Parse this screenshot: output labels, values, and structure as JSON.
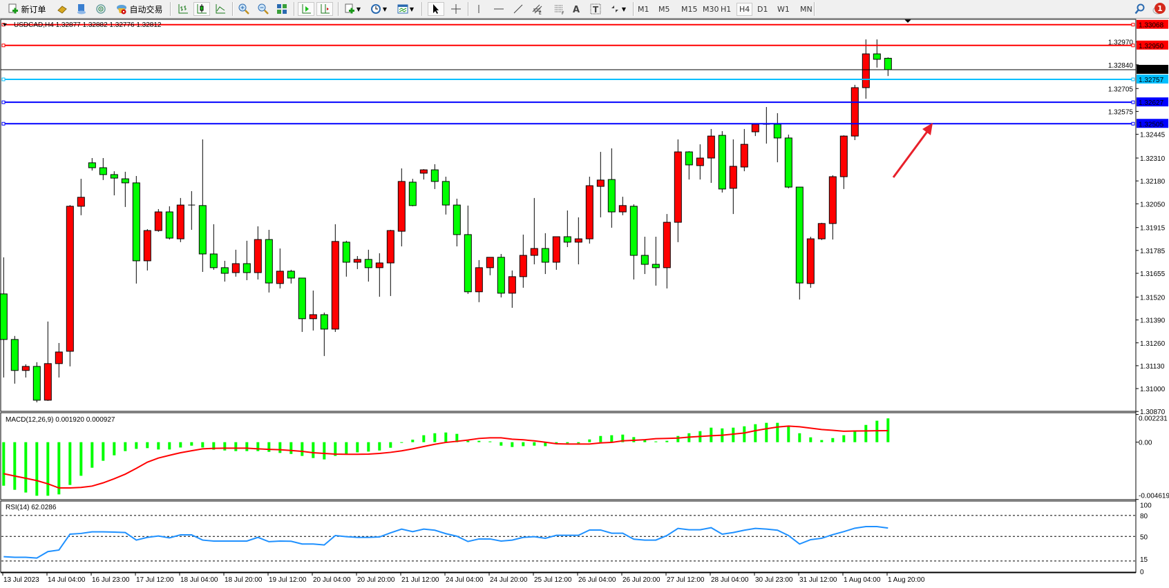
{
  "toolbar": {
    "new_order_label": "新订单",
    "auto_trading_label": "自动交易",
    "timeframes": [
      "M1",
      "M5",
      "M15",
      "M30",
      "H1",
      "H4",
      "D1",
      "W1",
      "MN"
    ],
    "active_timeframe": "H4",
    "notification_count": "1",
    "tool_icons": [
      "new-order-icon",
      "market-watch-icon",
      "navigator-icon",
      "signals-icon",
      "auto-trading-icon",
      "bar-chart-icon",
      "candlestick-icon",
      "line-chart-icon",
      "zoom-in-icon",
      "zoom-out-icon",
      "tile-windows-icon",
      "chart-shift-icon",
      "auto-scroll-icon",
      "indicators-icon",
      "periods-icon",
      "templates-icon",
      "cursor-icon",
      "crosshair-icon",
      "vertical-line-icon",
      "horizontal-line-icon",
      "trendline-icon",
      "equidistant-channel-icon",
      "fibonacci-icon",
      "text-icon",
      "text-label-icon",
      "arrows-icon",
      "search-icon",
      "notifications-icon"
    ]
  },
  "chart": {
    "symbol_info": "USDCAD,H4  1.32877 1.32882 1.32776 1.32812",
    "bull_color": "#ff0000",
    "bear_color": "#00ff00",
    "price_ticks": [
      "1.32970",
      "1.32840",
      "1.32705",
      "1.32575",
      "1.32445",
      "1.32310",
      "1.32180",
      "1.32050",
      "1.31915",
      "1.31785",
      "1.31655",
      "1.31520",
      "1.31390",
      "1.31260",
      "1.31130",
      "1.31000",
      "1.30870"
    ],
    "levels": [
      {
        "price": "1.33068",
        "color": "#ff0000"
      },
      {
        "price": "1.32950",
        "color": "#ff0000"
      },
      {
        "price": "1.32757",
        "color": "#00bfff"
      },
      {
        "price": "1.32627",
        "color": "#0000ff"
      },
      {
        "price": "1.32505",
        "color": "#0000ff"
      }
    ],
    "bid": {
      "price": "1.32812",
      "color": "#000000"
    },
    "time_labels": [
      "13 Jul 2023",
      "14 Jul 04:00",
      "16 Jul 23:00",
      "17 Jul 12:00",
      "18 Jul 04:00",
      "18 Jul 20:00",
      "19 Jul 12:00",
      "20 Jul 04:00",
      "20 Jul 20:00",
      "21 Jul 12:00",
      "24 Jul 04:00",
      "24 Jul 20:00",
      "25 Jul 12:00",
      "26 Jul 04:00",
      "26 Jul 20:00",
      "27 Jul 12:00",
      "28 Jul 04:00",
      "30 Jul 23:00",
      "31 Jul 12:00",
      "1 Aug 04:00",
      "1 Aug 20:00"
    ],
    "annotation_arrow_color": "#e8202a"
  },
  "macd": {
    "label": "MACD(12,26,9) 0.001920 0.000927",
    "axis_labels": [
      "0.002231",
      "0.00",
      "-0.004619"
    ]
  },
  "rsi": {
    "label": "RSI(14) 62.0286",
    "axis_labels": [
      "100",
      "80",
      "50",
      "15",
      "0"
    ],
    "line_color": "#1e90ff"
  },
  "chart_data": [
    {
      "type": "candlestick",
      "title": "USDCAD,H4",
      "ylim": [
        1.3087,
        1.331
      ],
      "ohlc": [
        [
          1.31538,
          1.31746,
          1.31063,
          1.31279
        ],
        [
          1.31279,
          1.31299,
          1.31028,
          1.31103
        ],
        [
          1.31103,
          1.31138,
          1.31063,
          1.31126
        ],
        [
          1.31126,
          1.3115,
          1.30922,
          1.30934
        ],
        [
          1.30934,
          1.31381,
          1.3093,
          1.31142
        ],
        [
          1.31142,
          1.31259,
          1.31063,
          1.31208
        ],
        [
          1.31212,
          1.32043,
          1.31126,
          1.32036
        ],
        [
          1.32036,
          1.32192,
          1.31985,
          1.32087
        ],
        [
          1.32283,
          1.3231,
          1.32239,
          1.32255
        ],
        [
          1.32255,
          1.3231,
          1.32185,
          1.32216
        ],
        [
          1.32216,
          1.32235,
          1.32098,
          1.32196
        ],
        [
          1.32192,
          1.32232,
          1.32032,
          1.32169
        ],
        [
          1.32169,
          1.32208,
          1.31597,
          1.31726
        ],
        [
          1.31726,
          1.31906,
          1.31671,
          1.31898
        ],
        [
          1.31898,
          1.3202,
          1.31891,
          1.32004
        ],
        [
          1.32004,
          1.32036,
          1.31847,
          1.31855
        ],
        [
          1.31851,
          1.32083,
          1.31832,
          1.32043
        ],
        [
          1.32043,
          1.32122,
          1.31902,
          1.32043
        ],
        [
          1.3204,
          1.32416,
          1.31663,
          1.31765
        ],
        [
          1.31765,
          1.31934,
          1.31675,
          1.31687
        ],
        [
          1.31687,
          1.31726,
          1.31608,
          1.31655
        ],
        [
          1.31659,
          1.31789,
          1.31636,
          1.3171
        ],
        [
          1.3171,
          1.3184,
          1.31616,
          1.31659
        ],
        [
          1.31659,
          1.31922,
          1.3162,
          1.31847
        ],
        [
          1.31847,
          1.31902,
          1.31546,
          1.316
        ],
        [
          1.31597,
          1.31796,
          1.31569,
          1.31667
        ],
        [
          1.31667,
          1.31675,
          1.31597,
          1.31628
        ],
        [
          1.31628,
          1.31628,
          1.31322,
          1.31397
        ],
        [
          1.31397,
          1.31557,
          1.3133,
          1.3142
        ],
        [
          1.3142,
          1.31432,
          1.31185,
          1.31338
        ],
        [
          1.31338,
          1.31934,
          1.31322,
          1.31836
        ],
        [
          1.31832,
          1.3184,
          1.31636,
          1.31718
        ],
        [
          1.31718,
          1.31753,
          1.31679,
          1.31734
        ],
        [
          1.31734,
          1.31789,
          1.31608,
          1.31687
        ],
        [
          1.31687,
          1.31769,
          1.31522,
          1.31714
        ],
        [
          1.31714,
          1.31902,
          1.31526,
          1.31898
        ],
        [
          1.31894,
          1.32251,
          1.31808,
          1.32177
        ],
        [
          1.32173,
          1.32192,
          1.32036,
          1.3204
        ],
        [
          1.32224,
          1.32247,
          1.32188,
          1.32243
        ],
        [
          1.32243,
          1.32275,
          1.32134,
          1.32177
        ],
        [
          1.32177,
          1.32204,
          1.31989,
          1.32043
        ],
        [
          1.32043,
          1.32079,
          1.31808,
          1.31875
        ],
        [
          1.31875,
          1.3204,
          1.31538,
          1.3155
        ],
        [
          1.3155,
          1.3173,
          1.31491,
          1.31687
        ],
        [
          1.31687,
          1.31746,
          1.31644,
          1.31746
        ],
        [
          1.31746,
          1.31765,
          1.31518,
          1.31542
        ],
        [
          1.31542,
          1.31671,
          1.31459,
          1.31636
        ],
        [
          1.31636,
          1.31875,
          1.31573,
          1.31757
        ],
        [
          1.31757,
          1.32083,
          1.31706,
          1.31796
        ],
        [
          1.31796,
          1.31883,
          1.31651,
          1.31718
        ],
        [
          1.31718,
          1.31863,
          1.31675,
          1.31863
        ],
        [
          1.31863,
          1.32012,
          1.31804,
          1.31832
        ],
        [
          1.31832,
          1.31973,
          1.31706,
          1.31851
        ],
        [
          1.31851,
          1.32204,
          1.31824,
          1.32153
        ],
        [
          1.32149,
          1.32345,
          1.31973,
          1.32185
        ],
        [
          1.32188,
          1.32365,
          1.31914,
          1.32004
        ],
        [
          1.32004,
          1.3209,
          1.31985,
          1.3204
        ],
        [
          1.32036,
          1.32047,
          1.3162,
          1.31757
        ],
        [
          1.31757,
          1.31863,
          1.31651,
          1.31706
        ],
        [
          1.31706,
          1.31863,
          1.31585,
          1.31687
        ],
        [
          1.31687,
          1.31992,
          1.31569,
          1.31945
        ],
        [
          1.31945,
          1.32416,
          1.31832,
          1.32345
        ],
        [
          1.32345,
          1.32349,
          1.32188,
          1.32271
        ],
        [
          1.32267,
          1.32388,
          1.32188,
          1.3231
        ],
        [
          1.3231,
          1.32475,
          1.32169,
          1.32435
        ],
        [
          1.32439,
          1.32463,
          1.32114,
          1.32134
        ],
        [
          1.32138,
          1.32416,
          1.31992,
          1.32263
        ],
        [
          1.32259,
          1.32475,
          1.32235,
          1.32388
        ],
        [
          1.32459,
          1.32502,
          1.32435,
          1.32502
        ],
        [
          1.32502,
          1.326,
          1.32392,
          1.32502
        ],
        [
          1.32502,
          1.32565,
          1.32286,
          1.32424
        ],
        [
          1.32424,
          1.32443,
          1.32138,
          1.32145
        ],
        [
          1.32145,
          1.32145,
          1.31506,
          1.316
        ],
        [
          1.31597,
          1.31863,
          1.31573,
          1.31851
        ],
        [
          1.31851,
          1.31942,
          1.31844,
          1.31938
        ],
        [
          1.31938,
          1.32212,
          1.31847,
          1.32204
        ],
        [
          1.32204,
          1.32439,
          1.32134,
          1.32435
        ],
        [
          1.32435,
          1.32726,
          1.32412,
          1.3271
        ],
        [
          1.3271,
          1.32984,
          1.32647,
          1.32902
        ],
        [
          1.32902,
          1.32984,
          1.32824,
          1.32871
        ],
        [
          1.32877,
          1.32882,
          1.32776,
          1.32812
        ]
      ]
    },
    {
      "type": "bar",
      "title": "MACD(12,26,9)",
      "ylim": [
        -0.004619,
        0.002231
      ],
      "series": [
        {
          "name": "MACD",
          "values": [
            -0.00351,
            -0.00384,
            -0.00406,
            -0.00432,
            -0.00432,
            -0.00421,
            -0.00345,
            -0.00271,
            -0.00206,
            -0.0015,
            -0.00106,
            -0.00072,
            -0.00054,
            -0.00048,
            -0.00059,
            -0.00059,
            -0.00043,
            -0.00028,
            -0.00043,
            -0.00061,
            -0.00067,
            -0.00072,
            -0.00072,
            -0.00072,
            -0.00078,
            -0.00087,
            -0.00095,
            -0.00111,
            -0.00128,
            -0.00139,
            -0.00111,
            -0.001,
            -0.00082,
            -0.00076,
            -0.00067,
            -0.00045,
            -4e-05,
            0.0002,
            0.00056,
            0.00072,
            0.00078,
            0.00067,
            0.00011,
            0.00011,
            6e-05,
            -0.00028,
            -0.00039,
            -0.00032,
            -0.00028,
            -0.00032,
            -9e-05,
            -9e-05,
            -9e-05,
            0.00022,
            0.0005,
            0.00056,
            0.00061,
            0.00041,
            0.00015,
            6e-05,
            0.00011,
            0.0005,
            0.00072,
            0.00089,
            0.00117,
            0.00111,
            0.00117,
            0.00128,
            0.00145,
            0.00156,
            0.00156,
            0.00134,
            0.00072,
            0.00039,
            0.00017,
            0.00033,
            0.00056,
            0.00095,
            0.00139,
            0.00173,
            0.00192
          ]
        },
        {
          "name": "Signal",
          "values": [
            -0.00254,
            -0.00273,
            -0.00291,
            -0.0031,
            -0.00336,
            -0.00369,
            -0.00369,
            -0.00365,
            -0.00354,
            -0.00328,
            -0.00295,
            -0.00258,
            -0.00211,
            -0.00161,
            -0.00128,
            -0.00106,
            -0.00085,
            -0.00069,
            -0.00054,
            -0.0005,
            -0.00048,
            -0.00048,
            -0.00048,
            -0.00054,
            -0.00058,
            -0.00061,
            -0.00067,
            -0.00074,
            -0.00085,
            -0.00091,
            -0.00096,
            -0.00098,
            -0.00098,
            -0.00096,
            -0.00091,
            -0.00082,
            -0.0007,
            -0.00054,
            -0.00035,
            -0.00017,
            -2e-05,
            7e-05,
            0.00017,
            0.0003,
            0.00035,
            0.00035,
            0.00024,
            0.00019,
            0.00011,
            0.0,
            -0.00013,
            -0.00015,
            -0.00015,
            -0.00015,
            -6e-05,
            -2e-05,
            0.00011,
            0.00015,
            0.0002,
            0.00028,
            0.0003,
            0.00033,
            0.00041,
            0.00046,
            0.00052,
            0.00056,
            0.00065,
            0.00074,
            0.00093,
            0.00108,
            0.00122,
            0.0013,
            0.00124,
            0.00113,
            0.00102,
            0.00096,
            0.00088,
            0.0009,
            0.00091,
            0.00092,
            0.000927
          ]
        }
      ]
    },
    {
      "type": "line",
      "title": "RSI(14)",
      "ylim": [
        0,
        100
      ],
      "levels": [
        80,
        50,
        15
      ],
      "values": [
        21.1,
        20.2,
        20.2,
        19.2,
        28.4,
        30.6,
        53.3,
        54.3,
        56.6,
        56.6,
        56.2,
        55.6,
        44.8,
        48.7,
        50.7,
        48.0,
        52.3,
        52.3,
        44.8,
        43.4,
        43.4,
        43.4,
        43.4,
        48.7,
        42.5,
        43.4,
        43.1,
        39.2,
        39.2,
        37.9,
        51.3,
        49.7,
        48.7,
        48.7,
        49.3,
        55.2,
        60.5,
        56.9,
        60.5,
        58.9,
        54.0,
        50.3,
        42.8,
        46.4,
        46.4,
        43.4,
        44.8,
        48.7,
        49.7,
        47.4,
        51.6,
        51.6,
        51.6,
        59.2,
        59.2,
        54.6,
        54.6,
        46.1,
        44.8,
        44.8,
        51.3,
        61.5,
        59.5,
        59.5,
        62.5,
        53.3,
        55.6,
        58.9,
        61.5,
        60.5,
        58.9,
        51.3,
        39.2,
        45.4,
        47.4,
        52.6,
        56.9,
        61.8,
        64.1,
        64.1,
        62.0286
      ]
    }
  ]
}
